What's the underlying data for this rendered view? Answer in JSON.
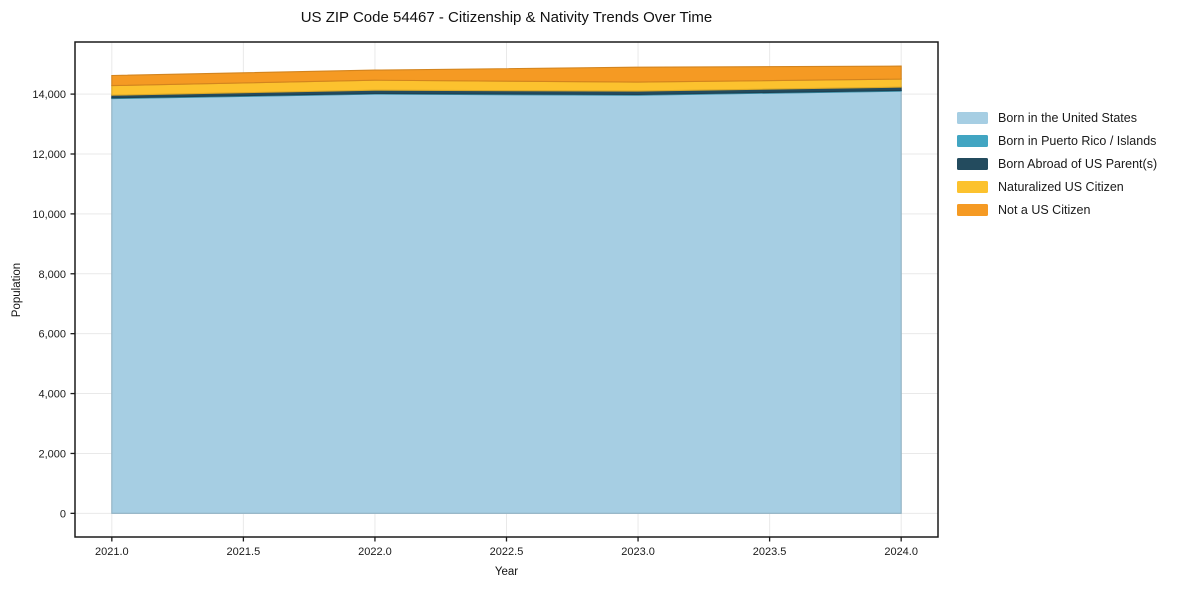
{
  "figure": {
    "background": "#ffffff"
  },
  "chart_data": {
    "type": "area",
    "stacked": true,
    "title": "US ZIP Code 54467 - Citizenship & Nativity Trends Over Time",
    "xlabel": "Year",
    "ylabel": "Population",
    "x": [
      2021,
      2022,
      2023,
      2024
    ],
    "series": [
      {
        "name": "Born in the United States",
        "color": "#a6cee3",
        "values": [
          13850,
          14000,
          13965,
          14100
        ]
      },
      {
        "name": "Born in Puerto Rico / Islands",
        "color": "#41a5c2",
        "values": [
          25,
          25,
          25,
          25
        ]
      },
      {
        "name": "Born Abroad of US Parent(s)",
        "color": "#234b5e",
        "values": [
          90,
          105,
          110,
          110
        ]
      },
      {
        "name": "Naturalized US Citizen",
        "color": "#fcc22e",
        "values": [
          320,
          335,
          300,
          265
        ]
      },
      {
        "name": "Not a US Citizen",
        "color": "#f59a23",
        "values": [
          335,
          335,
          500,
          435
        ]
      }
    ],
    "xlim": [
      2020.86,
      2024.14
    ],
    "ylim": [
      -790,
      15740
    ],
    "xticks": {
      "values": [
        2021,
        2021.5,
        2022,
        2022.5,
        2023,
        2023.5,
        2024
      ],
      "labels": [
        "2021.0",
        "2021.5",
        "2022.0",
        "2022.5",
        "2023.0",
        "2023.5",
        "2024.0"
      ]
    },
    "yticks": {
      "values": [
        0,
        2000,
        4000,
        6000,
        8000,
        10000,
        12000,
        14000
      ],
      "labels": [
        "0",
        "2,000",
        "4,000",
        "6,000",
        "8,000",
        "10,000",
        "12,000",
        "14,000"
      ]
    },
    "grid": true,
    "grid_color": "#e9e9e9",
    "spine_color": "#1a1a1a",
    "tick_label_color": "#1a1a1a",
    "legend_position": "outside-right"
  }
}
